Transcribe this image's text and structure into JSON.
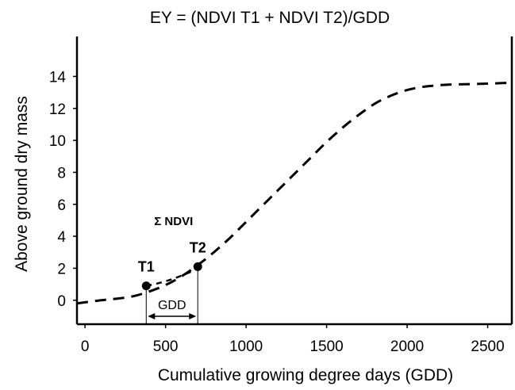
{
  "chart_data": {
    "type": "line",
    "title": "EY = (NDVI T1 + NDVI T2)/GDD",
    "xlabel": "Cumulative growing degree days (GDD)",
    "ylabel": "Above ground dry mass",
    "xlim": [
      -50,
      2650
    ],
    "ylim": [
      -1.5,
      16.5
    ],
    "x_ticks": [
      "0",
      "500",
      "1000",
      "1500",
      "2000",
      "2500"
    ],
    "y_ticks": [
      "0",
      "2",
      "4",
      "6",
      "8",
      "10",
      "12",
      "14"
    ],
    "grid": false,
    "series": [
      {
        "style": "long-dashed",
        "x": [
          -50,
          100,
          200,
          300,
          400,
          500,
          600,
          700,
          800,
          900,
          1000,
          1100,
          1200,
          1300,
          1400,
          1500,
          1600,
          1700,
          1800,
          1900,
          2000,
          2100,
          2200,
          2300,
          2400,
          2500,
          2630
        ],
        "y": [
          -0.2,
          0.0,
          0.1,
          0.25,
          0.55,
          0.95,
          1.5,
          2.2,
          3.0,
          3.9,
          4.9,
          5.9,
          6.9,
          7.9,
          8.9,
          9.9,
          10.8,
          11.6,
          12.3,
          12.8,
          13.15,
          13.35,
          13.45,
          13.5,
          13.52,
          13.55,
          13.6
        ]
      },
      {
        "style": "short-dashed",
        "x": [
          380,
          450,
          550,
          650,
          700
        ],
        "y": [
          0.9,
          1.05,
          1.35,
          1.75,
          2.0
        ]
      }
    ],
    "points": [
      {
        "label": "T1",
        "x": 380,
        "y": 0.9
      },
      {
        "label": "T2",
        "x": 700,
        "y": 2.1
      }
    ],
    "annotations": {
      "sum_ndvi": "Σ NDVI",
      "gdd_span": "GDD",
      "gdd_span_x": [
        380,
        700
      ]
    }
  }
}
